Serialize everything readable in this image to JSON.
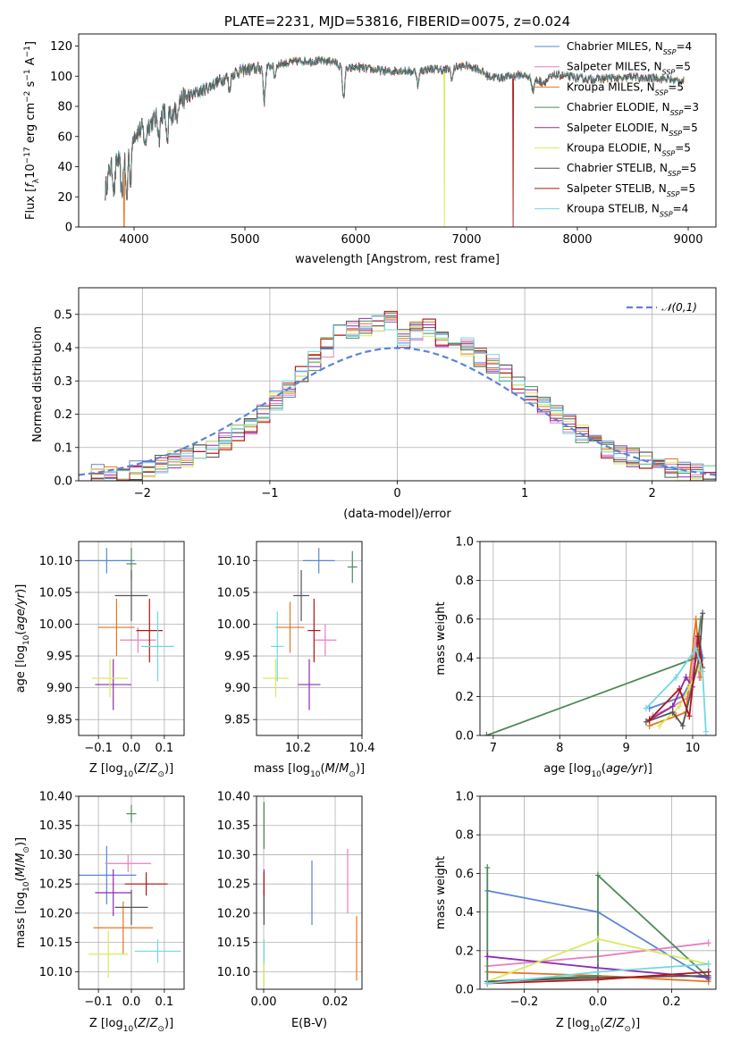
{
  "colors": {
    "Chabrier MILES": "#5b84d6",
    "Salpeter MILES": "#e87fc0",
    "Kroupa MILES": "#e8731e",
    "Chabrier ELODIE": "#4e8a5a",
    "Salpeter ELODIE": "#8e2cad",
    "Kroupa ELODIE": "#d9ea5c",
    "Chabrier STELIB": "#555555",
    "Salpeter STELIB": "#b01515",
    "Kroupa STELIB": "#6fd9e0",
    "normal": "#5b84d6"
  },
  "chart_data": [
    {
      "id": "spectrum",
      "type": "line",
      "title": "PLATE=2231, MJD=53816, FIBERID=0075, z=0.024",
      "xlabel": "wavelength [Angstrom, rest frame]",
      "ylabel": "Flux [f_λ 10^-17 erg cm^-2 s^-1 A^-1]",
      "xlim": [
        3500,
        9250
      ],
      "ylim": [
        0,
        128
      ],
      "xticks": [
        4000,
        5000,
        6000,
        7000,
        8000,
        9000
      ],
      "yticks": [
        0,
        20,
        40,
        60,
        80,
        100,
        120
      ],
      "grid": false,
      "legend_position": "upper right",
      "legend": [
        {
          "name": "Chabrier MILES, N",
          "sub": "SSP",
          "tail": "=4"
        },
        {
          "name": "Salpeter MILES, N",
          "sub": "SSP",
          "tail": "=5"
        },
        {
          "name": "Kroupa MILES, N",
          "sub": "SSP",
          "tail": "=5"
        },
        {
          "name": "Chabrier ELODIE, N",
          "sub": "SSP",
          "tail": "=3"
        },
        {
          "name": "Salpeter ELODIE, N",
          "sub": "SSP",
          "tail": "=5"
        },
        {
          "name": "Kroupa ELODIE, N",
          "sub": "SSP",
          "tail": "=5"
        },
        {
          "name": "Chabrier STELIB, N",
          "sub": "SSP",
          "tail": "=5"
        },
        {
          "name": "Salpeter STELIB, N",
          "sub": "SSP",
          "tail": "=5"
        },
        {
          "name": "Kroupa STELIB, N",
          "sub": "SSP",
          "tail": "=4"
        }
      ],
      "continuum": [
        [
          3740,
          24
        ],
        [
          3780,
          38
        ],
        [
          3850,
          45
        ],
        [
          3900,
          42
        ],
        [
          3950,
          58
        ],
        [
          4000,
          62
        ],
        [
          4100,
          66
        ],
        [
          4200,
          72
        ],
        [
          4300,
          78
        ],
        [
          4400,
          84
        ],
        [
          4500,
          87
        ],
        [
          4600,
          90
        ],
        [
          4700,
          94
        ],
        [
          4800,
          98
        ],
        [
          4900,
          102
        ],
        [
          5000,
          104
        ],
        [
          5100,
          105
        ],
        [
          5200,
          106
        ],
        [
          5300,
          108
        ],
        [
          5400,
          109
        ],
        [
          5500,
          110
        ],
        [
          5600,
          110
        ],
        [
          5700,
          110
        ],
        [
          5800,
          110
        ],
        [
          5900,
          104
        ],
        [
          6000,
          106
        ],
        [
          6100,
          105
        ],
        [
          6200,
          104
        ],
        [
          6300,
          103
        ],
        [
          6400,
          104
        ],
        [
          6500,
          103
        ],
        [
          6600,
          104
        ],
        [
          6700,
          105
        ],
        [
          6800,
          104
        ],
        [
          6900,
          106
        ],
        [
          7000,
          107
        ],
        [
          7100,
          105
        ],
        [
          7200,
          100
        ],
        [
          7300,
          99
        ],
        [
          7400,
          100
        ],
        [
          7500,
          101
        ],
        [
          7600,
          98
        ],
        [
          7700,
          96
        ],
        [
          7800,
          101
        ],
        [
          7900,
          100
        ],
        [
          8000,
          99
        ],
        [
          8100,
          98
        ],
        [
          8200,
          98
        ],
        [
          8300,
          99
        ],
        [
          8400,
          98
        ],
        [
          8500,
          100
        ],
        [
          8600,
          98
        ],
        [
          8700,
          99
        ],
        [
          8800,
          98
        ],
        [
          8900,
          97
        ],
        [
          8960,
          97
        ]
      ],
      "absorption_lines": [
        [
          3820,
          18
        ],
        [
          3889,
          22
        ],
        [
          3934,
          36
        ],
        [
          3969,
          30
        ],
        [
          4101,
          12
        ],
        [
          4227,
          14
        ],
        [
          4300,
          25
        ],
        [
          4340,
          12
        ],
        [
          4383,
          10
        ],
        [
          4861,
          10
        ],
        [
          5175,
          22
        ],
        [
          5270,
          8
        ],
        [
          5890,
          20
        ],
        [
          6563,
          10
        ],
        [
          6870,
          8
        ],
        [
          7600,
          8
        ]
      ]
    },
    {
      "id": "residuals",
      "type": "histogram",
      "xlabel": "(data-model)/error",
      "ylabel": "Normed distribution",
      "xlim": [
        -2.5,
        2.5
      ],
      "ylim": [
        0,
        0.58
      ],
      "xticks": [
        -2,
        -1,
        0,
        1,
        2
      ],
      "yticks": [
        0.0,
        0.1,
        0.2,
        0.3,
        0.4,
        0.5
      ],
      "grid": true,
      "legend_position": "upper right",
      "legend_label": "𝒩(0,1)",
      "bin_width": 0.1,
      "bin_start": -2.5,
      "base_histogram": [
        0.02,
        0.02,
        0.02,
        0.03,
        0.03,
        0.04,
        0.05,
        0.06,
        0.07,
        0.08,
        0.1,
        0.12,
        0.14,
        0.17,
        0.2,
        0.24,
        0.28,
        0.32,
        0.36,
        0.4,
        0.44,
        0.45,
        0.46,
        0.47,
        0.48,
        0.43,
        0.45,
        0.46,
        0.43,
        0.41,
        0.4,
        0.37,
        0.35,
        0.32,
        0.29,
        0.26,
        0.23,
        0.2,
        0.17,
        0.14,
        0.11,
        0.09,
        0.08,
        0.07,
        0.06,
        0.05,
        0.04,
        0.03,
        0.03,
        0.02
      ]
    },
    {
      "id": "age-vs-Z",
      "type": "errorbar",
      "xlabel": "Z [log10(Z/Z☉)]",
      "ylabel": "age  [log10(age/yr)]",
      "xlim": [
        -0.16,
        0.16
      ],
      "ylim": [
        9.825,
        10.13
      ],
      "xticks": [
        -0.1,
        0.0,
        0.1
      ],
      "yticks": [
        9.85,
        9.9,
        9.95,
        10.0,
        10.05,
        10.1
      ],
      "grid": true,
      "points": [
        {
          "s": "Chabrier MILES",
          "x": -0.075,
          "y": 10.1,
          "xerr": 0.085,
          "yerr": 0.02
        },
        {
          "s": "Salpeter MILES",
          "x": 0.02,
          "y": 9.975,
          "xerr": 0.055,
          "yerr": 0.02
        },
        {
          "s": "Kroupa MILES",
          "x": -0.045,
          "y": 9.995,
          "xerr": 0.055,
          "yerr": 0.045
        },
        {
          "s": "Chabrier ELODIE",
          "x": 0.0,
          "y": 10.095,
          "xerr": 0.015,
          "yerr": 0.025
        },
        {
          "s": "Salpeter ELODIE",
          "x": -0.055,
          "y": 9.905,
          "xerr": 0.055,
          "yerr": 0.04
        },
        {
          "s": "Kroupa ELODIE",
          "x": -0.065,
          "y": 9.915,
          "xerr": 0.055,
          "yerr": 0.03
        },
        {
          "s": "Chabrier STELIB",
          "x": 0.0,
          "y": 10.045,
          "xerr": 0.05,
          "yerr": 0.04
        },
        {
          "s": "Salpeter STELIB",
          "x": 0.055,
          "y": 9.99,
          "xerr": 0.04,
          "yerr": 0.05
        },
        {
          "s": "Kroupa STELIB",
          "x": 0.08,
          "y": 9.965,
          "xerr": 0.05,
          "yerr": 0.055
        }
      ]
    },
    {
      "id": "age-vs-mass",
      "type": "errorbar",
      "xlabel": "mass [log10(M/M☉)]",
      "ylabel": "",
      "xlim": [
        10.07,
        10.4
      ],
      "ylim": [
        9.825,
        10.13
      ],
      "xticks": [
        10.2,
        10.4
      ],
      "yticks": [
        9.85,
        9.9,
        9.95,
        10.0,
        10.05,
        10.1
      ],
      "grid": true,
      "points": [
        {
          "s": "Chabrier MILES",
          "x": 10.265,
          "y": 10.1,
          "xerr": 0.05,
          "yerr": 0.02
        },
        {
          "s": "Salpeter MILES",
          "x": 10.285,
          "y": 9.975,
          "xerr": 0.035,
          "yerr": 0.025
        },
        {
          "s": "Kroupa MILES",
          "x": 10.175,
          "y": 9.995,
          "xerr": 0.045,
          "yerr": 0.04
        },
        {
          "s": "Chabrier ELODIE",
          "x": 10.37,
          "y": 10.09,
          "xerr": 0.015,
          "yerr": 0.025
        },
        {
          "s": "Salpeter ELODIE",
          "x": 10.235,
          "y": 9.905,
          "xerr": 0.035,
          "yerr": 0.04
        },
        {
          "s": "Kroupa ELODIE",
          "x": 10.13,
          "y": 9.915,
          "xerr": 0.04,
          "yerr": 0.03
        },
        {
          "s": "Chabrier STELIB",
          "x": 10.21,
          "y": 10.045,
          "xerr": 0.025,
          "yerr": 0.04
        },
        {
          "s": "Salpeter STELIB",
          "x": 10.25,
          "y": 9.99,
          "xerr": 0.02,
          "yerr": 0.05
        },
        {
          "s": "Kroupa STELIB",
          "x": 10.135,
          "y": 9.965,
          "xerr": 0.02,
          "yerr": 0.055
        }
      ]
    },
    {
      "id": "weight-vs-age",
      "type": "line",
      "xlabel": "age  [log10(age/yr)]",
      "ylabel": "mass weight",
      "xlim": [
        6.8,
        10.35
      ],
      "ylim": [
        0.0,
        1.0
      ],
      "xticks": [
        7,
        8,
        9,
        10
      ],
      "yticks": [
        0.0,
        0.2,
        0.4,
        0.6,
        0.8,
        1.0
      ],
      "grid": true,
      "series": [
        {
          "s": "Chabrier MILES",
          "x": [
            9.35,
            9.85,
            10.0,
            10.1,
            10.15
          ],
          "y": [
            0.14,
            0.2,
            0.3,
            0.5,
            0.4
          ]
        },
        {
          "s": "Salpeter MILES",
          "x": [
            9.4,
            9.7,
            9.95,
            10.05,
            10.1
          ],
          "y": [
            0.1,
            0.15,
            0.2,
            0.5,
            0.3
          ]
        },
        {
          "s": "Kroupa MILES",
          "x": [
            9.35,
            9.75,
            9.9,
            10.05,
            10.12
          ],
          "y": [
            0.05,
            0.1,
            0.12,
            0.6,
            0.3
          ]
        },
        {
          "s": "Chabrier ELODIE",
          "x": [
            6.9,
            10.05,
            10.12
          ],
          "y": [
            0.0,
            0.4,
            0.6
          ]
        },
        {
          "s": "Salpeter ELODIE",
          "x": [
            9.35,
            9.7,
            9.9,
            10.0
          ],
          "y": [
            0.08,
            0.15,
            0.3,
            0.25
          ]
        },
        {
          "s": "Kroupa ELODIE",
          "x": [
            9.5,
            9.8,
            9.95,
            10.1
          ],
          "y": [
            0.05,
            0.15,
            0.25,
            0.35
          ]
        },
        {
          "s": "Chabrier STELIB",
          "x": [
            9.3,
            9.7,
            9.85,
            10.1,
            10.15
          ],
          "y": [
            0.07,
            0.12,
            0.05,
            0.4,
            0.63
          ]
        },
        {
          "s": "Salpeter STELIB",
          "x": [
            9.35,
            9.8,
            9.95,
            10.08,
            10.15
          ],
          "y": [
            0.08,
            0.24,
            0.1,
            0.51,
            0.35
          ]
        },
        {
          "s": "Kroupa STELIB",
          "x": [
            9.3,
            9.75,
            10.05,
            10.15,
            10.2
          ],
          "y": [
            0.14,
            0.3,
            0.45,
            0.33,
            0.02
          ]
        }
      ]
    },
    {
      "id": "mass-vs-Z",
      "type": "errorbar",
      "xlabel": "Z [log10(Z/Z☉)]",
      "ylabel": "mass [log10(M/M☉)]",
      "xlim": [
        -0.16,
        0.16
      ],
      "ylim": [
        10.07,
        10.4
      ],
      "xticks": [
        -0.1,
        0.0,
        0.1
      ],
      "yticks": [
        10.1,
        10.15,
        10.2,
        10.25,
        10.3,
        10.35,
        10.4
      ],
      "grid": true,
      "points": [
        {
          "s": "Chabrier MILES",
          "x": -0.075,
          "y": 10.265,
          "xerr": 0.09,
          "yerr": 0.05
        },
        {
          "s": "Salpeter MILES",
          "x": -0.01,
          "y": 10.285,
          "xerr": 0.07,
          "yerr": 0.015
        },
        {
          "s": "Kroupa MILES",
          "x": -0.025,
          "y": 10.175,
          "xerr": 0.09,
          "yerr": 0.045
        },
        {
          "s": "Chabrier ELODIE",
          "x": 0.0,
          "y": 10.37,
          "xerr": 0.015,
          "yerr": 0.015
        },
        {
          "s": "Salpeter ELODIE",
          "x": -0.055,
          "y": 10.235,
          "xerr": 0.055,
          "yerr": 0.04
        },
        {
          "s": "Kroupa ELODIE",
          "x": -0.07,
          "y": 10.13,
          "xerr": 0.06,
          "yerr": 0.04
        },
        {
          "s": "Chabrier STELIB",
          "x": 0.0,
          "y": 10.21,
          "xerr": 0.05,
          "yerr": 0.03
        },
        {
          "s": "Salpeter STELIB",
          "x": 0.045,
          "y": 10.25,
          "xerr": 0.065,
          "yerr": 0.02
        },
        {
          "s": "Kroupa STELIB",
          "x": 0.08,
          "y": 10.135,
          "xerr": 0.07,
          "yerr": 0.02
        }
      ]
    },
    {
      "id": "mass-vs-EBV",
      "type": "errorbar",
      "xlabel": "E(B-V)",
      "ylabel": "",
      "xlim": [
        -0.002,
        0.0275
      ],
      "ylim": [
        10.07,
        10.4
      ],
      "xticks": [
        0.0,
        0.02
      ],
      "yticks": [
        10.1,
        10.15,
        10.2,
        10.25,
        10.3,
        10.35,
        10.4
      ],
      "grid": true,
      "points": [
        {
          "s": "Chabrier MILES",
          "x": 0.0135,
          "y": 10.235,
          "xerr": 0.0,
          "yerr": 0.055
        },
        {
          "s": "Salpeter MILES",
          "x": 0.0235,
          "y": 10.255,
          "xerr": 0.0,
          "yerr": 0.055
        },
        {
          "s": "Kroupa MILES",
          "x": 0.026,
          "y": 10.14,
          "xerr": 0.0,
          "yerr": 0.055
        },
        {
          "s": "Chabrier ELODIE",
          "x": 0.0001,
          "y": 10.35,
          "xerr": 0.0,
          "yerr": 0.04
        },
        {
          "s": "Salpeter ELODIE",
          "x": 0.0001,
          "y": 10.235,
          "xerr": 0.0,
          "yerr": 0.04
        },
        {
          "s": "Kroupa ELODIE",
          "x": 0.0001,
          "y": 10.115,
          "xerr": 0.0,
          "yerr": 0.04
        },
        {
          "s": "Chabrier STELIB",
          "x": 0.0001,
          "y": 10.21,
          "xerr": 0.0,
          "yerr": 0.03
        },
        {
          "s": "Salpeter STELIB",
          "x": 0.0001,
          "y": 10.25,
          "xerr": 0.0,
          "yerr": 0.02
        },
        {
          "s": "Kroupa STELIB",
          "x": 0.0001,
          "y": 10.135,
          "xerr": 0.0,
          "yerr": 0.02
        }
      ]
    },
    {
      "id": "weight-vs-Z",
      "type": "line",
      "xlabel": "Z [log10(Z/Z☉)]",
      "ylabel": "mass weight",
      "xlim": [
        -0.32,
        0.32
      ],
      "ylim": [
        0.0,
        1.0
      ],
      "xticks": [
        -0.2,
        0.0,
        0.2
      ],
      "yticks": [
        0.0,
        0.2,
        0.4,
        0.6,
        0.8,
        1.0
      ],
      "grid": true,
      "series": [
        {
          "s": "Chabrier MILES",
          "x": [
            -0.3,
            0.0,
            0.3
          ],
          "y": [
            0.51,
            0.4,
            0.05
          ]
        },
        {
          "s": "Salpeter MILES",
          "x": [
            -0.3,
            0.0,
            0.3
          ],
          "y": [
            0.12,
            0.17,
            0.24
          ]
        },
        {
          "s": "Kroupa MILES",
          "x": [
            -0.3,
            0.0,
            0.3
          ],
          "y": [
            0.09,
            0.07,
            0.04
          ]
        },
        {
          "s": "Chabrier ELODIE",
          "x": [
            -0.3,
            -0.3,
            0.0,
            0.0,
            0.3
          ],
          "y": [
            0.63,
            0.04,
            0.07,
            0.59,
            0.06
          ]
        },
        {
          "s": "Salpeter ELODIE",
          "x": [
            -0.3,
            0.0,
            0.3
          ],
          "y": [
            0.17,
            0.11,
            0.06
          ]
        },
        {
          "s": "Kroupa ELODIE",
          "x": [
            -0.3,
            0.0,
            0.3
          ],
          "y": [
            0.04,
            0.26,
            0.13
          ]
        },
        {
          "s": "Chabrier STELIB",
          "x": [
            -0.3,
            0.0,
            0.3
          ],
          "y": [
            0.04,
            0.06,
            0.07
          ]
        },
        {
          "s": "Salpeter STELIB",
          "x": [
            -0.3,
            0.0,
            0.3
          ],
          "y": [
            0.03,
            0.05,
            0.09
          ]
        },
        {
          "s": "Kroupa STELIB",
          "x": [
            -0.3,
            0.0,
            0.3
          ],
          "y": [
            0.03,
            0.09,
            0.13
          ]
        }
      ]
    }
  ]
}
